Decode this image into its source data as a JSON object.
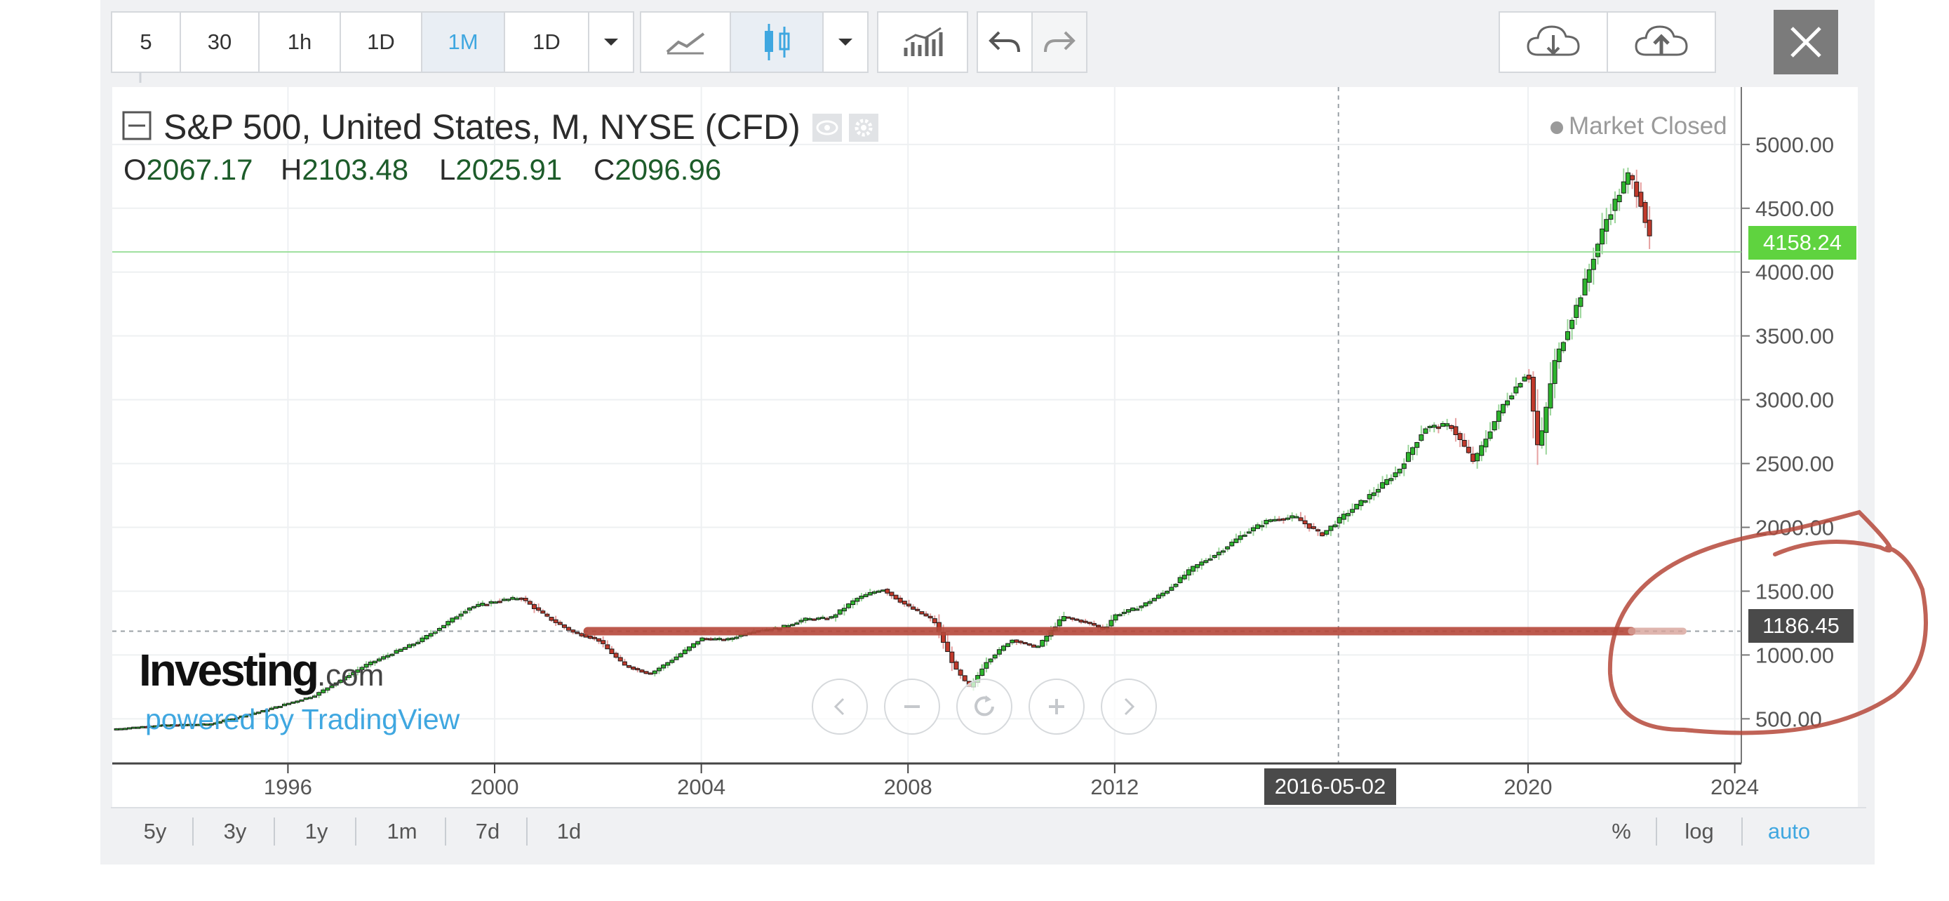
{
  "toolbar": {
    "intervals": [
      "5",
      "30",
      "1h",
      "1D",
      "1M",
      "1D"
    ],
    "active_interval": "1M",
    "icons": [
      "dropdown-caret-icon",
      "line-chart-icon",
      "candlestick-icon",
      "dropdown-caret-icon",
      "indicators-icon",
      "undo-icon",
      "redo-icon",
      "cloud-download-icon",
      "cloud-upload-icon",
      "close-icon"
    ]
  },
  "legend": {
    "title": "S&P 500, United States, M, NYSE (CFD)",
    "ohlc": [
      {
        "k": "O",
        "v": "2067.17"
      },
      {
        "k": "H",
        "v": "2103.48"
      },
      {
        "k": "L",
        "v": "2025.91"
      },
      {
        "k": "C",
        "v": "2096.96"
      }
    ]
  },
  "status": {
    "market": "Market Closed"
  },
  "branding": {
    "logo_main": "Investing",
    "logo_suffix": ".com",
    "powered_by": "powered by TradingView"
  },
  "crosshair": {
    "date_label": "2016-05-02",
    "price_label": "1186.45"
  },
  "last_price": {
    "label": "4158.24"
  },
  "colors": {
    "up": "#2db52d",
    "down": "#c0392b",
    "accent": "#3fa7e0",
    "last_price": "#5fd33f",
    "annotation": "#b5483a"
  },
  "bottom": {
    "ranges": [
      "5y",
      "3y",
      "1y",
      "1m",
      "7d",
      "1d"
    ],
    "scale": [
      "%",
      "log",
      "auto"
    ],
    "active_scale": "auto"
  },
  "chart_data": {
    "type": "candlestick",
    "title": "S&P 500, United States, M, NYSE (CFD)",
    "frequency": "monthly",
    "x_tick_labels": [
      "1996",
      "2000",
      "2004",
      "2008",
      "2012",
      "2016-05-02",
      "2020",
      "2024"
    ],
    "y_tick_labels": [
      "500.00",
      "1000.00",
      "1500.00",
      "2000.00",
      "2500.00",
      "3000.00",
      "3500.00",
      "4000.00",
      "4500.00",
      "5000.00"
    ],
    "xlim": [
      1992.6,
      2024.1
    ],
    "ylim": [
      150,
      5450
    ],
    "grid": true,
    "close_path": [
      [
        1992.6,
        420
      ],
      [
        1993.5,
        450
      ],
      [
        1994.5,
        460
      ],
      [
        1995.5,
        560
      ],
      [
        1996.5,
        680
      ],
      [
        1997.5,
        920
      ],
      [
        1998.5,
        1100
      ],
      [
        1999.0,
        1230
      ],
      [
        1999.5,
        1370
      ],
      [
        2000.0,
        1420
      ],
      [
        2000.5,
        1450
      ],
      [
        2001.0,
        1300
      ],
      [
        2001.5,
        1180
      ],
      [
        2002.0,
        1120
      ],
      [
        2002.5,
        920
      ],
      [
        2003.0,
        850
      ],
      [
        2003.5,
        980
      ],
      [
        2004.0,
        1130
      ],
      [
        2004.5,
        1120
      ],
      [
        2005.0,
        1190
      ],
      [
        2005.5,
        1210
      ],
      [
        2006.0,
        1280
      ],
      [
        2006.5,
        1290
      ],
      [
        2007.0,
        1440
      ],
      [
        2007.5,
        1520
      ],
      [
        2008.0,
        1380
      ],
      [
        2008.5,
        1270
      ],
      [
        2008.9,
        900
      ],
      [
        2009.2,
        740
      ],
      [
        2009.5,
        940
      ],
      [
        2010.0,
        1120
      ],
      [
        2010.5,
        1060
      ],
      [
        2011.0,
        1300
      ],
      [
        2011.5,
        1250
      ],
      [
        2011.8,
        1200
      ],
      [
        2012.0,
        1310
      ],
      [
        2012.5,
        1380
      ],
      [
        2013.0,
        1500
      ],
      [
        2013.5,
        1680
      ],
      [
        2014.0,
        1800
      ],
      [
        2014.5,
        1950
      ],
      [
        2015.0,
        2060
      ],
      [
        2015.5,
        2080
      ],
      [
        2016.0,
        1940
      ],
      [
        2016.4,
        2080
      ],
      [
        2017.0,
        2270
      ],
      [
        2017.5,
        2450
      ],
      [
        2018.0,
        2780
      ],
      [
        2018.5,
        2800
      ],
      [
        2018.95,
        2510
      ],
      [
        2019.5,
        2950
      ],
      [
        2020.0,
        3230
      ],
      [
        2020.2,
        2590
      ],
      [
        2020.5,
        3280
      ],
      [
        2021.0,
        3800
      ],
      [
        2021.5,
        4400
      ],
      [
        2021.95,
        4770
      ],
      [
        2022.2,
        4530
      ],
      [
        2022.4,
        4160
      ]
    ],
    "last_price": 4158.24,
    "last_ohlc": {
      "open": 2067.17,
      "high": 2103.48,
      "low": 2025.91,
      "close": 2096.96
    },
    "horizontal_level": 1186.45,
    "annotations": [
      "hand-drawn red horizontal line at 1186.45",
      "hand-drawn red circle around price axis 500–2000"
    ]
  }
}
